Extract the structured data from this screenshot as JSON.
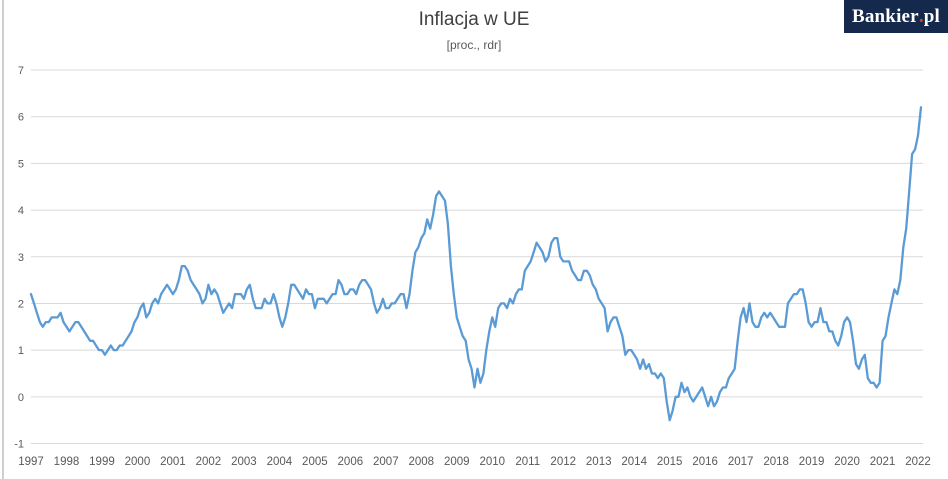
{
  "header": {
    "title": "Inflacja w UE",
    "subtitle": "[proc., rdr]"
  },
  "logo": {
    "text_main": "Bankier",
    "text_dot": ".",
    "text_suffix": "pl",
    "bg_color": "#15294d",
    "dot_color": "#c94d17"
  },
  "colors": {
    "line": "#5B9BD5",
    "grid": "#D9D9D9",
    "tick_text": "#595959",
    "title_text": "#404040"
  },
  "chart_data": {
    "type": "line",
    "title": "Inflacja w UE",
    "subtitle": "[proc., rdr]",
    "unit": "proc., rdr",
    "frequency": "monthly",
    "x_start": "1997-01",
    "x_end": "2022-02",
    "ylim": [
      -1,
      7
    ],
    "grid": "horizontal",
    "legend": "none",
    "y_ticks": [
      7,
      6,
      5,
      4,
      3,
      2,
      1,
      0,
      -1
    ],
    "x_tick_labels": [
      "1997",
      "1998",
      "1999",
      "2000",
      "2001",
      "2002",
      "2003",
      "2004",
      "2005",
      "2006",
      "2007",
      "2008",
      "2009",
      "2010",
      "2011",
      "2012",
      "2013",
      "2014",
      "2015",
      "2016",
      "2017",
      "2018",
      "2019",
      "2020",
      "2021",
      "2022"
    ],
    "series": [
      {
        "name": "Inflacja w UE (proc., rdr)",
        "color": "#5B9BD5",
        "values": [
          2.2,
          2.0,
          1.8,
          1.6,
          1.5,
          1.6,
          1.6,
          1.7,
          1.7,
          1.7,
          1.8,
          1.6,
          1.5,
          1.4,
          1.5,
          1.6,
          1.6,
          1.5,
          1.4,
          1.3,
          1.2,
          1.2,
          1.1,
          1.0,
          1.0,
          0.9,
          1.0,
          1.1,
          1.0,
          1.0,
          1.1,
          1.1,
          1.2,
          1.3,
          1.4,
          1.6,
          1.7,
          1.9,
          2.0,
          1.7,
          1.8,
          2.0,
          2.1,
          2.0,
          2.2,
          2.3,
          2.4,
          2.3,
          2.2,
          2.3,
          2.5,
          2.8,
          2.8,
          2.7,
          2.5,
          2.4,
          2.3,
          2.2,
          2.0,
          2.1,
          2.4,
          2.2,
          2.3,
          2.2,
          2.0,
          1.8,
          1.9,
          2.0,
          1.9,
          2.2,
          2.2,
          2.2,
          2.1,
          2.3,
          2.4,
          2.1,
          1.9,
          1.9,
          1.9,
          2.1,
          2.0,
          2.0,
          2.2,
          2.0,
          1.7,
          1.5,
          1.7,
          2.0,
          2.4,
          2.4,
          2.3,
          2.2,
          2.1,
          2.3,
          2.2,
          2.2,
          1.9,
          2.1,
          2.1,
          2.1,
          2.0,
          2.1,
          2.2,
          2.2,
          2.5,
          2.4,
          2.2,
          2.2,
          2.3,
          2.3,
          2.2,
          2.4,
          2.5,
          2.5,
          2.4,
          2.3,
          2.0,
          1.8,
          1.9,
          2.1,
          1.9,
          1.9,
          2.0,
          2.0,
          2.1,
          2.2,
          2.2,
          1.9,
          2.2,
          2.7,
          3.1,
          3.2,
          3.4,
          3.5,
          3.8,
          3.6,
          3.9,
          4.3,
          4.4,
          4.3,
          4.2,
          3.7,
          2.8,
          2.2,
          1.7,
          1.5,
          1.3,
          1.2,
          0.8,
          0.6,
          0.2,
          0.6,
          0.3,
          0.5,
          1.0,
          1.4,
          1.7,
          1.5,
          1.9,
          2.0,
          2.0,
          1.9,
          2.1,
          2.0,
          2.2,
          2.3,
          2.3,
          2.7,
          2.8,
          2.9,
          3.1,
          3.3,
          3.2,
          3.1,
          2.9,
          3.0,
          3.3,
          3.4,
          3.4,
          3.0,
          2.9,
          2.9,
          2.9,
          2.7,
          2.6,
          2.5,
          2.5,
          2.7,
          2.7,
          2.6,
          2.4,
          2.3,
          2.1,
          2.0,
          1.9,
          1.4,
          1.6,
          1.7,
          1.7,
          1.5,
          1.3,
          0.9,
          1.0,
          1.0,
          0.9,
          0.8,
          0.6,
          0.8,
          0.6,
          0.7,
          0.5,
          0.5,
          0.4,
          0.5,
          0.4,
          -0.1,
          -0.5,
          -0.3,
          0.0,
          0.0,
          0.3,
          0.1,
          0.2,
          0.0,
          -0.1,
          0.0,
          0.1,
          0.2,
          0.0,
          -0.2,
          0.0,
          -0.2,
          -0.1,
          0.1,
          0.2,
          0.2,
          0.4,
          0.5,
          0.6,
          1.2,
          1.7,
          1.9,
          1.6,
          2.0,
          1.6,
          1.5,
          1.5,
          1.7,
          1.8,
          1.7,
          1.8,
          1.7,
          1.6,
          1.5,
          1.5,
          1.5,
          2.0,
          2.1,
          2.2,
          2.2,
          2.3,
          2.3,
          2.0,
          1.6,
          1.5,
          1.6,
          1.6,
          1.9,
          1.6,
          1.6,
          1.4,
          1.4,
          1.2,
          1.1,
          1.3,
          1.6,
          1.7,
          1.6,
          1.2,
          0.7,
          0.6,
          0.8,
          0.9,
          0.4,
          0.3,
          0.3,
          0.2,
          0.3,
          1.2,
          1.3,
          1.7,
          2.0,
          2.3,
          2.2,
          2.5,
          3.2,
          3.6,
          4.4,
          5.2,
          5.3,
          5.6,
          6.2
        ]
      }
    ]
  }
}
